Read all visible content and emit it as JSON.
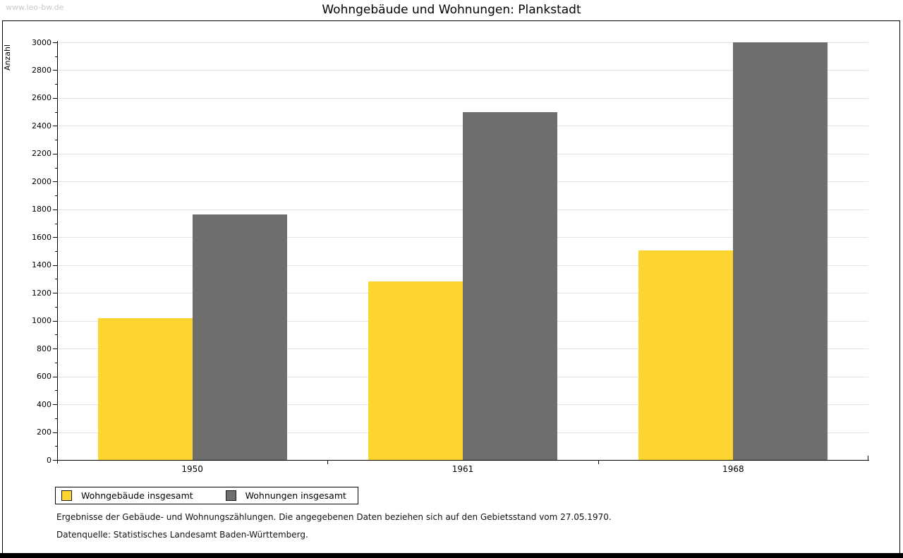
{
  "watermark": "www.leo-bw.de",
  "title": "Wohngebäude und Wohnungen: Plankstadt",
  "chart_data": {
    "type": "bar",
    "title": "Wohngebäude und Wohnungen: Plankstadt",
    "xlabel": "",
    "ylabel": "Anzahl",
    "categories": [
      "1950",
      "1961",
      "1968"
    ],
    "series": [
      {
        "name": "Wohngebäude insgesamt",
        "color": "#fdd530",
        "values": [
          1019,
          1284,
          1505
        ]
      },
      {
        "name": "Wohnungen insgesamt",
        "color": "#6e6e6e",
        "values": [
          1766,
          2497,
          3000
        ]
      }
    ],
    "ylim": [
      0,
      3000
    ],
    "ytick_step": 200,
    "minor_tick_step": 100,
    "grid": true,
    "gridline_color": "#e2e2e2",
    "legend_position": "bottom-left"
  },
  "legend": {
    "items": [
      {
        "label": "Wohngebäude insgesamt",
        "color": "#fdd530"
      },
      {
        "label": "Wohnungen insgesamt",
        "color": "#6e6e6e"
      }
    ]
  },
  "footer": {
    "line1": "Ergebnisse der Gebäude- und Wohnungszählungen. Die angegebenen Daten beziehen sich auf den Gebietsstand vom 27.05.1970.",
    "line2": "Datenquelle: Statistisches Landesamt Baden-Württemberg."
  }
}
